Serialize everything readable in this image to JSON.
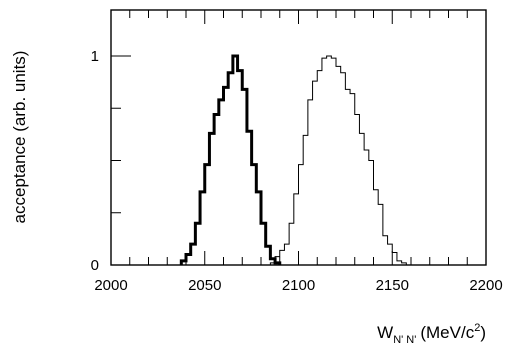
{
  "chart_data": {
    "type": "line",
    "step": true,
    "ylabel": "acceptance (arb. units)",
    "xlabel": {
      "symbol": "W",
      "subscript": "N' N'",
      "unit_prefix": "(MeV/c",
      "unit_power": "2",
      "unit_suffix": ")"
    },
    "xlim": [
      2000,
      2200
    ],
    "ylim": [
      0,
      1.22
    ],
    "x_ticks": [
      "2000",
      "2050",
      "2100",
      "2150",
      "2200"
    ],
    "y_ticks": [
      "0",
      "1"
    ],
    "bin_width": 2.5,
    "grid": false,
    "series": [
      {
        "style": "thick",
        "color": "#000000",
        "x_start": 2037.5,
        "values": [
          0.02,
          0.05,
          0.1,
          0.2,
          0.35,
          0.48,
          0.63,
          0.72,
          0.79,
          0.85,
          0.92,
          1.0,
          0.93,
          0.84,
          0.64,
          0.48,
          0.35,
          0.2,
          0.09,
          0.03,
          0.01
        ]
      },
      {
        "style": "thin",
        "color": "#000000",
        "x_start": 2085.0,
        "values": [
          0.01,
          0.04,
          0.07,
          0.1,
          0.2,
          0.34,
          0.48,
          0.62,
          0.79,
          0.88,
          0.93,
          0.99,
          1.0,
          0.99,
          0.95,
          0.92,
          0.84,
          0.82,
          0.72,
          0.63,
          0.55,
          0.5,
          0.36,
          0.29,
          0.14,
          0.1,
          0.06,
          0.02,
          0.01
        ]
      }
    ]
  }
}
